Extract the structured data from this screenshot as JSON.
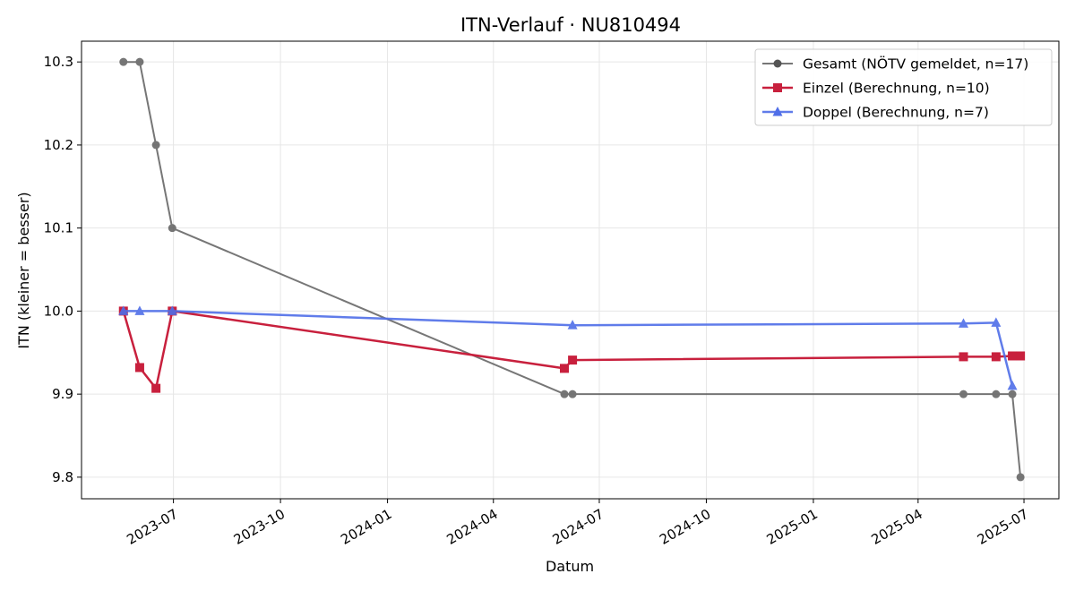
{
  "chart_data": {
    "type": "line",
    "title": "ITN-Verlauf · NU810494",
    "xlabel": "Datum",
    "ylabel": "ITN  (kleiner = besser)",
    "x_range": [
      "2023-04-13",
      "2025-07-31"
    ],
    "ylim": [
      9.774,
      10.325
    ],
    "y_ticks": [
      9.8,
      9.9,
      10.0,
      10.1,
      10.2,
      10.3
    ],
    "y_tick_labels": [
      "9.8",
      "9.9",
      "10.0",
      "10.1",
      "10.2",
      "10.3"
    ],
    "x_ticks": [
      "2023-07-01",
      "2023-10-01",
      "2024-01-01",
      "2024-04-01",
      "2024-07-01",
      "2024-10-01",
      "2025-01-01",
      "2025-04-01",
      "2025-07-01"
    ],
    "x_tick_labels": [
      "2023-07",
      "2023-10",
      "2024-01",
      "2024-04",
      "2024-07",
      "2024-10",
      "2025-01",
      "2025-04",
      "2025-07"
    ],
    "grid": true,
    "legend_position": "top-right",
    "series": [
      {
        "name": "Gesamt (NÖTV gemeldet, n=17)",
        "color": "#555555",
        "marker": "circle",
        "points": [
          {
            "x": "2023-05-19",
            "y": 10.3
          },
          {
            "x": "2023-06-02",
            "y": 10.3
          },
          {
            "x": "2023-06-16",
            "y": 10.2
          },
          {
            "x": "2023-06-30",
            "y": 10.1
          },
          {
            "x": "2024-06-01",
            "y": 9.9
          },
          {
            "x": "2024-06-08",
            "y": 9.9
          },
          {
            "x": "2025-05-10",
            "y": 9.9
          },
          {
            "x": "2025-06-07",
            "y": 9.9
          },
          {
            "x": "2025-06-21",
            "y": 9.9
          },
          {
            "x": "2025-06-28",
            "y": 9.8
          }
        ]
      },
      {
        "name": "Einzel (Berechnung, n=10)",
        "color": "#c8203d",
        "marker": "square",
        "points": [
          {
            "x": "2023-05-19",
            "y": 10.0
          },
          {
            "x": "2023-06-02",
            "y": 9.932
          },
          {
            "x": "2023-06-16",
            "y": 9.907
          },
          {
            "x": "2023-06-30",
            "y": 10.0
          },
          {
            "x": "2024-06-01",
            "y": 9.931
          },
          {
            "x": "2024-06-08",
            "y": 9.941
          },
          {
            "x": "2025-05-10",
            "y": 9.945
          },
          {
            "x": "2025-06-07",
            "y": 9.945
          },
          {
            "x": "2025-06-21",
            "y": 9.946
          },
          {
            "x": "2025-06-28",
            "y": 9.946
          }
        ]
      },
      {
        "name": "Doppel (Berechnung, n=7)",
        "color": "#4f6ee8",
        "marker": "triangle",
        "points": [
          {
            "x": "2023-05-19",
            "y": 10.0
          },
          {
            "x": "2023-06-02",
            "y": 10.0
          },
          {
            "x": "2023-06-30",
            "y": 10.0
          },
          {
            "x": "2024-06-08",
            "y": 9.983
          },
          {
            "x": "2025-05-10",
            "y": 9.985
          },
          {
            "x": "2025-06-07",
            "y": 9.986
          },
          {
            "x": "2025-06-21",
            "y": 9.91
          }
        ]
      }
    ]
  }
}
